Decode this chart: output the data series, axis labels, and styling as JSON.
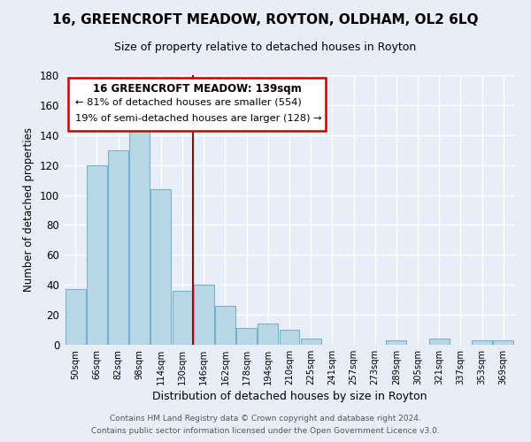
{
  "title": "16, GREENCROFT MEADOW, ROYTON, OLDHAM, OL2 6LQ",
  "subtitle": "Size of property relative to detached houses in Royton",
  "xlabel": "Distribution of detached houses by size in Royton",
  "ylabel": "Number of detached properties",
  "bar_color": "#b8d8e8",
  "bar_edge_color": "#7ab0cc",
  "background_color": "#e8eef8",
  "grid_color": "#ffffff",
  "categories": [
    "50sqm",
    "66sqm",
    "82sqm",
    "98sqm",
    "114sqm",
    "130sqm",
    "146sqm",
    "162sqm",
    "178sqm",
    "194sqm",
    "210sqm",
    "225sqm",
    "241sqm",
    "257sqm",
    "273sqm",
    "289sqm",
    "305sqm",
    "321sqm",
    "337sqm",
    "353sqm",
    "369sqm"
  ],
  "values": [
    37,
    120,
    130,
    143,
    104,
    36,
    40,
    26,
    11,
    14,
    10,
    4,
    0,
    0,
    0,
    3,
    0,
    4,
    0,
    3,
    3
  ],
  "ylim": [
    0,
    180
  ],
  "yticks": [
    0,
    20,
    40,
    60,
    80,
    100,
    120,
    140,
    160,
    180
  ],
  "property_line_x": 5.5,
  "annotation_title": "16 GREENCROFT MEADOW: 139sqm",
  "annotation_line1": "← 81% of detached houses are smaller (554)",
  "annotation_line2": "19% of semi-detached houses are larger (128) →",
  "footer_line1": "Contains HM Land Registry data © Crown copyright and database right 2024.",
  "footer_line2": "Contains public sector information licensed under the Open Government Licence v3.0."
}
